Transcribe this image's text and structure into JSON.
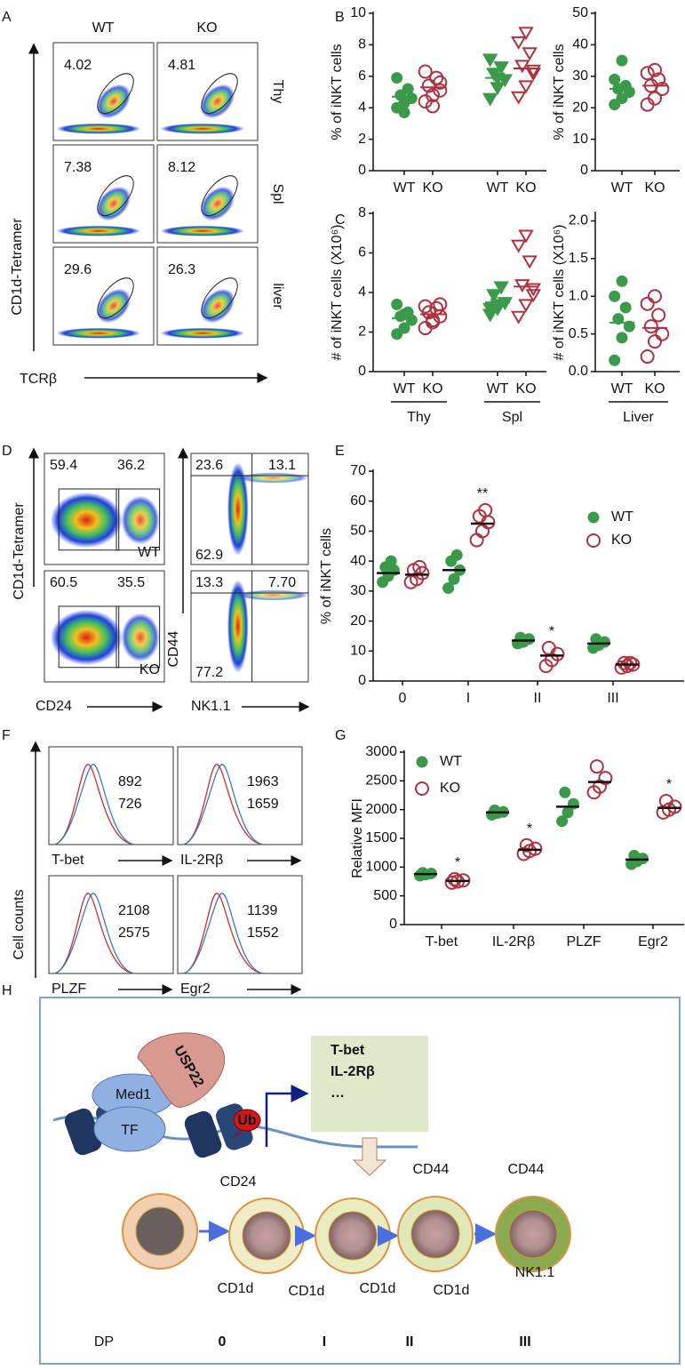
{
  "panel_labels": [
    "A",
    "B",
    "C",
    "D",
    "E",
    "F",
    "G",
    "H"
  ],
  "panel_a": {
    "columns": [
      "WT",
      "KO"
    ],
    "rows": [
      "Thy",
      "Spl",
      "liver"
    ],
    "values": [
      [
        "4.02",
        "4.81"
      ],
      [
        "7.38",
        "8.12"
      ],
      [
        "29.6",
        "26.3"
      ]
    ],
    "y_label": "CD1d-Tetramer",
    "x_label": "TCRβ"
  },
  "panel_d": {
    "left": {
      "values": [
        [
          "59.4",
          "36.2"
        ],
        [
          "60.5",
          "35.5"
        ]
      ],
      "tags": [
        "WT",
        "KO"
      ],
      "y_label": "CD1d-Tetramer",
      "x_label": "CD24"
    },
    "right": {
      "values": [
        [
          "23.6",
          "13.1",
          "62.9"
        ],
        [
          "13.3",
          "7.70",
          "77.2"
        ]
      ],
      "y_label": "CD44",
      "x_label": "NK1.1"
    }
  },
  "panel_f": {
    "markers": [
      "T-bet",
      "IL-2Rβ",
      "PLZF",
      "Egr2"
    ],
    "wt_values": [
      "892",
      "1963",
      "2108",
      "1139"
    ],
    "ko_values": [
      "726",
      "1659",
      "2575",
      "1552"
    ],
    "wt_color": "#d42a2a",
    "ko_color": "#3a78c0",
    "y_label": "Cell counts"
  },
  "chart_data": [
    {
      "type": "strip",
      "ylabel": "% of iNKT cells",
      "ylim": [
        0,
        10
      ],
      "yticks": [
        0,
        2,
        4,
        6,
        8,
        10
      ],
      "categories": [
        "WT",
        "KO",
        "WT",
        "KO"
      ],
      "colors": [
        "#3a9a4a",
        "#b0303f",
        "#3a9a4a",
        "#b0303f"
      ],
      "markers": [
        "circle-filled",
        "circle-open",
        "triangle-filled",
        "triangle-open"
      ],
      "points": [
        [
          4.0,
          4.3,
          4.6,
          4.8,
          5.2,
          5.9,
          3.7
        ],
        [
          4.4,
          4.8,
          5.1,
          5.4,
          5.9,
          6.3,
          4.1,
          5.6
        ],
        [
          4.6,
          5.3,
          5.8,
          6.2,
          6.6,
          7.1,
          5.9
        ],
        [
          4.7,
          5.4,
          6.2,
          6.7,
          7.5,
          8.2,
          8.8,
          6.4
        ]
      ],
      "means": [
        4.7,
        5.3,
        5.9,
        6.5
      ]
    },
    {
      "type": "strip",
      "ylabel": "% of iNKT cells",
      "ylim": [
        0,
        50
      ],
      "yticks": [
        0,
        10,
        20,
        30,
        40,
        50
      ],
      "categories": [
        "WT",
        "KO"
      ],
      "colors": [
        "#3a9a4a",
        "#b0303f"
      ],
      "markers": [
        "circle-filled",
        "circle-open"
      ],
      "points": [
        [
          21,
          23,
          25,
          26,
          27,
          29,
          35
        ],
        [
          21,
          23,
          26,
          27,
          29,
          31,
          32
        ]
      ],
      "means": [
        26,
        27
      ]
    },
    {
      "type": "strip",
      "ylabel": "# of iNKT cells (X10⁶)",
      "ylim": [
        0,
        8
      ],
      "yticks": [
        0,
        2,
        4,
        6,
        8
      ],
      "categories": [
        "WT",
        "KO",
        "WT",
        "KO"
      ],
      "groups": [
        "Thy",
        "Spl"
      ],
      "colors": [
        "#3a9a4a",
        "#b0303f",
        "#3a9a4a",
        "#b0303f"
      ],
      "markers": [
        "circle-filled",
        "circle-open",
        "triangle-filled",
        "triangle-open"
      ],
      "points": [
        [
          1.9,
          2.2,
          2.6,
          2.8,
          3.0,
          3.4,
          2.9
        ],
        [
          2.2,
          2.5,
          2.8,
          3.0,
          3.2,
          3.3,
          2.6,
          3.4
        ],
        [
          2.9,
          3.2,
          3.5,
          3.9,
          4.3,
          3.2,
          3.4
        ],
        [
          2.8,
          3.4,
          3.9,
          4.4,
          5.6,
          6.4,
          6.9,
          4.2
        ]
      ],
      "means": [
        2.7,
        2.9,
        3.5,
        4.3
      ]
    },
    {
      "type": "strip",
      "ylabel": "# of iNKT cells (X10⁶)",
      "ylim": [
        0,
        2.1
      ],
      "yticks": [
        {
          "value": 0,
          "label": "0.0"
        },
        0.5,
        {
          "value": 1,
          "label": "1.0"
        },
        1.5,
        {
          "value": 2,
          "label": "2.0"
        }
      ],
      "categories": [
        "WT",
        "KO"
      ],
      "groups": [
        "Liver"
      ],
      "colors": [
        "#3a9a4a",
        "#b0303f"
      ],
      "markers": [
        "circle-filled",
        "circle-open"
      ],
      "points": [
        [
          0.15,
          0.45,
          0.6,
          0.7,
          0.85,
          1.0,
          1.2
        ],
        [
          0.2,
          0.4,
          0.5,
          0.6,
          0.75,
          0.9,
          1.0
        ]
      ],
      "means": [
        0.65,
        0.58
      ]
    },
    {
      "type": "grouped-strip",
      "ylabel": "% of iNKT cells",
      "ylim": [
        0,
        70
      ],
      "yticks": [
        0,
        10,
        20,
        30,
        40,
        50,
        60,
        70
      ],
      "categories": [
        "0",
        "I",
        "II",
        "III"
      ],
      "series": [
        {
          "name": "WT",
          "color": "#3a9a4a",
          "marker": "circle-filled",
          "points": [
            [
              33,
              35,
              37,
              38,
              40
            ],
            [
              31,
              34,
              37,
              40,
              42
            ],
            [
              12.5,
              13,
              14,
              14.5
            ],
            [
              11,
              12,
              13,
              14
            ]
          ],
          "means": [
            36,
            37,
            13.5,
            12.5
          ]
        },
        {
          "name": "KO",
          "color": "#b0303f",
          "marker": "circle-open",
          "points": [
            [
              33,
              34,
              36,
              37,
              38
            ],
            [
              47,
              50,
              53,
              55,
              57
            ],
            [
              5,
              7,
              9,
              11
            ],
            [
              4.5,
              5,
              5.5,
              6,
              6
            ]
          ],
          "means": [
            35.5,
            52.5,
            8.5,
            5.5
          ],
          "annotations": [
            null,
            "**",
            "*",
            null
          ]
        }
      ]
    },
    {
      "type": "grouped-strip",
      "ylabel": "Relative MFI",
      "ylim": [
        0,
        3000
      ],
      "yticks": [
        0,
        500,
        1000,
        1500,
        2000,
        2500,
        3000
      ],
      "categories": [
        "T-bet",
        "IL-2Rβ",
        "PLZF",
        "Egr2"
      ],
      "series": [
        {
          "name": "WT",
          "color": "#3a9a4a",
          "marker": "circle-filled",
          "points": [
            [
              850,
              870,
              890,
              900
            ],
            [
              1910,
              1940,
              1960,
              1990
            ],
            [
              1800,
              1950,
              2100,
              2300
            ],
            [
              1050,
              1100,
              1150,
              1200
            ]
          ],
          "means": [
            880,
            1950,
            2050,
            1130
          ]
        },
        {
          "name": "KO",
          "color": "#b0303f",
          "marker": "circle-open",
          "points": [
            [
              730,
              750,
              770,
              790
            ],
            [
              1230,
              1280,
              1320,
              1380
            ],
            [
              2300,
              2400,
              2550,
              2750
            ],
            [
              1950,
              2000,
              2050,
              2150
            ]
          ],
          "means": [
            760,
            1300,
            2480,
            2030
          ],
          "annotations": [
            "*",
            "*",
            null,
            "*"
          ]
        }
      ]
    }
  ],
  "diagram": {
    "proteins": [
      "Med1",
      "USP22",
      "TF"
    ],
    "ub": "Ub",
    "targets": [
      "T-bet",
      "IL-2Rβ",
      "…"
    ],
    "surface_markers": [
      "CD24",
      "CD44",
      "CD44",
      "CD1d",
      "CD1d",
      "CD1d",
      "CD1d",
      "NK1.1"
    ],
    "stages": [
      "DP",
      "0",
      "I",
      "II",
      "III"
    ]
  }
}
